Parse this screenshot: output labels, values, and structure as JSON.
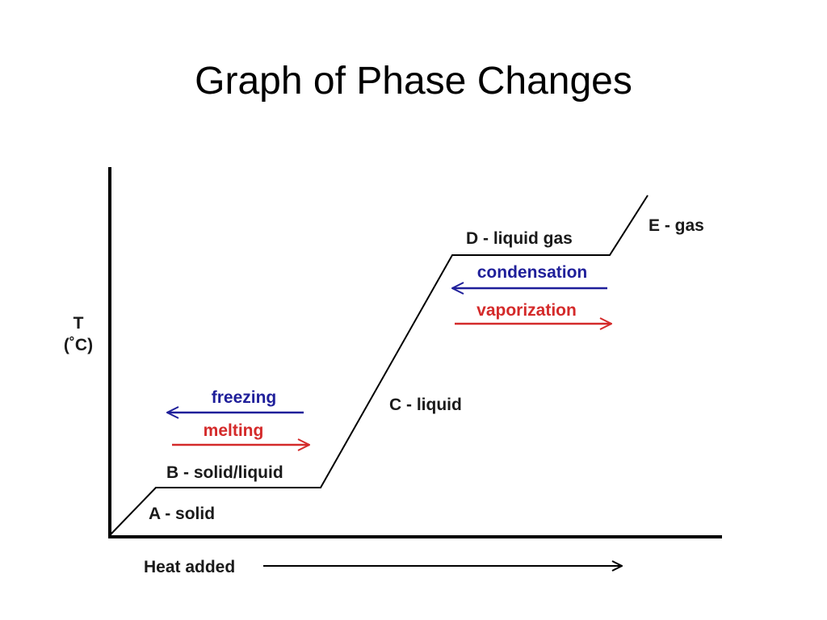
{
  "header": {
    "title": "Graph of Phase Changes"
  },
  "axes": {
    "y_label": "T",
    "y_unit": "(˚C)",
    "x_label": "Heat added"
  },
  "segments": [
    {
      "label": "A - solid"
    },
    {
      "label": "B - solid/liquid"
    },
    {
      "label": "C - liquid"
    },
    {
      "label": "D - liquid gas"
    },
    {
      "label": "E - gas"
    }
  ],
  "transitions": [
    {
      "label": "freezing",
      "color": "#1f1f9a"
    },
    {
      "label": "melting",
      "color": "#d42a2a"
    },
    {
      "label": "condensation",
      "color": "#1f1f9a"
    },
    {
      "label": "vaporization",
      "color": "#d42a2a"
    }
  ]
}
